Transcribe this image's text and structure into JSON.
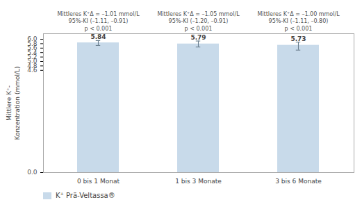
{
  "chart_data": {
    "type": "bar",
    "categories": [
      "0 bis 1 Monat",
      "1 bis 3 Monate",
      "3 bis 6 Monate"
    ],
    "series": [
      {
        "name": "K⁺ Prä-Veltassa®",
        "color": "#c8daea",
        "values": [
          5.84,
          5.79,
          5.73
        ],
        "errors_upper": [
          0.1,
          0.13,
          0.14
        ],
        "errors_lower": [
          0.12,
          0.14,
          0.22
        ]
      }
    ],
    "ylabel": "Mittlere K⁺-\nKonzentration (mmol/L)",
    "annotations": [
      "Mittleres K⁺Δ = –1.01 mmol/L\n95%-KI (–1.11, –0.91)\np < 0.001",
      "Mittleres K⁺Δ = –1.05 mmol/L\n95%-KI (–1.20, –0.91)\np < 0.001",
      "Mittleres K⁺Δ = –1.00 mmol/L\n95%-KI (–1.11, –0.80)\np < 0.001"
    ],
    "ylim": [
      0.0,
      6.25
    ],
    "yticks": [
      {
        "value": 0.0,
        "label": "0.0"
      },
      4.6,
      4.8,
      {
        "value": 5.0,
        "label": "5.0"
      },
      5.2,
      5.4,
      5.6,
      5.8,
      {
        "value": 6.0,
        "label": "6.0"
      }
    ],
    "data_labels": true,
    "grid": false,
    "legend": "lower left"
  }
}
